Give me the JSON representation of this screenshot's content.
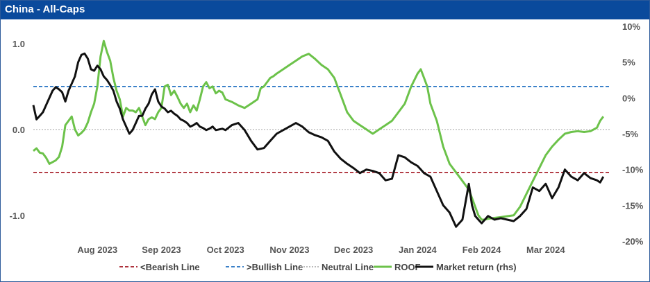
{
  "title": "China - All-Caps",
  "chart_data": {
    "type": "line",
    "left_axis": {
      "ticks": [
        1.0,
        0.0,
        -1.0
      ],
      "labels": [
        "1.0",
        "0.0",
        "-1.0"
      ],
      "range": [
        -1.3,
        1.2
      ]
    },
    "right_axis": {
      "ticks": [
        10,
        5,
        0,
        -5,
        -10,
        -15,
        -20
      ],
      "labels": [
        "10%",
        "5%",
        "0%",
        "-5%",
        "-10%",
        "-15%",
        "-20%"
      ],
      "range": [
        -20,
        10
      ]
    },
    "x_range": [
      0,
      9.0
    ],
    "x_ticks": [
      {
        "pos": 1.0,
        "label": "Aug 2023"
      },
      {
        "pos": 2.0,
        "label": "Sep 2023"
      },
      {
        "pos": 3.0,
        "label": "Oct 2023"
      },
      {
        "pos": 4.0,
        "label": "Nov 2023"
      },
      {
        "pos": 5.0,
        "label": "Dec 2023"
      },
      {
        "pos": 6.0,
        "label": "Jan 2024"
      },
      {
        "pos": 7.0,
        "label": "Feb 2024"
      },
      {
        "pos": 8.0,
        "label": "Mar 2024"
      }
    ],
    "reference_lines": [
      {
        "name": "<Bearish Line",
        "value": -0.5,
        "color": "#a31621",
        "style": "dashed"
      },
      {
        "name": ">Bullish Line",
        "value": 0.5,
        "color": "#1f6fc1",
        "style": "dashed"
      },
      {
        "name": "Neutral Line",
        "value": 0.0,
        "color": "#b0b0b0",
        "style": "dotted"
      }
    ],
    "series": [
      {
        "name": "ROOF",
        "axis": "left",
        "color": "#6cc24a",
        "x": [
          0.0,
          0.05,
          0.1,
          0.15,
          0.2,
          0.25,
          0.3,
          0.35,
          0.4,
          0.45,
          0.5,
          0.55,
          0.6,
          0.65,
          0.7,
          0.75,
          0.8,
          0.85,
          0.9,
          0.95,
          1.0,
          1.05,
          1.1,
          1.15,
          1.2,
          1.25,
          1.3,
          1.35,
          1.4,
          1.45,
          1.5,
          1.55,
          1.6,
          1.65,
          1.7,
          1.75,
          1.8,
          1.85,
          1.9,
          1.95,
          2.0,
          2.05,
          2.1,
          2.15,
          2.2,
          2.25,
          2.3,
          2.35,
          2.4,
          2.45,
          2.5,
          2.55,
          2.6,
          2.65,
          2.7,
          2.75,
          2.8,
          2.85,
          2.9,
          2.95,
          3.0,
          3.1,
          3.2,
          3.3,
          3.4,
          3.5,
          3.55,
          3.6,
          3.65,
          3.7,
          3.75,
          3.8,
          3.9,
          4.0,
          4.1,
          4.2,
          4.3,
          4.4,
          4.5,
          4.6,
          4.7,
          4.8,
          4.9,
          5.0,
          5.1,
          5.2,
          5.3,
          5.4,
          5.5,
          5.6,
          5.7,
          5.8,
          5.9,
          6.0,
          6.05,
          6.1,
          6.15,
          6.2,
          6.3,
          6.4,
          6.5,
          6.6,
          6.7,
          6.8,
          6.85,
          6.9,
          6.95,
          7.0,
          7.05,
          7.1,
          7.2,
          7.3,
          7.4,
          7.5,
          7.6,
          7.7,
          7.8,
          7.9,
          8.0,
          8.1,
          8.2,
          8.3,
          8.4,
          8.5,
          8.6,
          8.7,
          8.8,
          8.85,
          8.9
        ],
        "values": [
          -0.25,
          -0.22,
          -0.27,
          -0.28,
          -0.33,
          -0.4,
          -0.38,
          -0.36,
          -0.32,
          -0.2,
          0.05,
          0.1,
          0.15,
          0.0,
          -0.07,
          -0.04,
          0.0,
          0.08,
          0.2,
          0.3,
          0.5,
          0.85,
          1.03,
          0.9,
          0.8,
          0.6,
          0.45,
          0.35,
          0.15,
          0.25,
          0.22,
          0.22,
          0.2,
          0.25,
          0.15,
          0.05,
          0.12,
          0.14,
          0.12,
          0.2,
          0.25,
          0.5,
          0.52,
          0.4,
          0.45,
          0.38,
          0.3,
          0.25,
          0.3,
          0.2,
          0.28,
          0.22,
          0.35,
          0.5,
          0.55,
          0.48,
          0.5,
          0.42,
          0.45,
          0.43,
          0.35,
          0.32,
          0.28,
          0.25,
          0.3,
          0.35,
          0.48,
          0.5,
          0.55,
          0.6,
          0.62,
          0.65,
          0.7,
          0.75,
          0.8,
          0.85,
          0.88,
          0.82,
          0.75,
          0.7,
          0.6,
          0.4,
          0.2,
          0.1,
          0.05,
          0.0,
          -0.05,
          0.0,
          0.05,
          0.1,
          0.2,
          0.3,
          0.5,
          0.65,
          0.7,
          0.6,
          0.5,
          0.3,
          0.1,
          -0.2,
          -0.4,
          -0.5,
          -0.6,
          -0.7,
          -0.8,
          -0.9,
          -1.0,
          -1.05,
          -1.05,
          -1.04,
          -1.03,
          -1.02,
          -1.01,
          -1.0,
          -0.9,
          -0.75,
          -0.6,
          -0.45,
          -0.3,
          -0.2,
          -0.12,
          -0.05,
          -0.03,
          -0.02,
          -0.03,
          -0.02,
          0.02,
          0.1,
          0.15
        ]
      },
      {
        "name": "Market return (rhs)",
        "axis": "right",
        "color": "#111111",
        "x": [
          0.0,
          0.05,
          0.1,
          0.15,
          0.2,
          0.25,
          0.3,
          0.35,
          0.4,
          0.45,
          0.5,
          0.55,
          0.6,
          0.65,
          0.7,
          0.75,
          0.8,
          0.85,
          0.9,
          0.95,
          1.0,
          1.05,
          1.1,
          1.15,
          1.2,
          1.25,
          1.3,
          1.35,
          1.4,
          1.45,
          1.5,
          1.55,
          1.6,
          1.65,
          1.7,
          1.75,
          1.8,
          1.85,
          1.9,
          1.95,
          2.0,
          2.05,
          2.1,
          2.15,
          2.2,
          2.25,
          2.3,
          2.35,
          2.4,
          2.45,
          2.5,
          2.55,
          2.6,
          2.65,
          2.7,
          2.75,
          2.8,
          2.85,
          2.9,
          2.95,
          3.0,
          3.1,
          3.2,
          3.3,
          3.4,
          3.5,
          3.6,
          3.7,
          3.8,
          3.9,
          4.0,
          4.1,
          4.2,
          4.3,
          4.4,
          4.5,
          4.6,
          4.7,
          4.8,
          4.9,
          5.0,
          5.1,
          5.2,
          5.3,
          5.4,
          5.5,
          5.6,
          5.7,
          5.8,
          5.9,
          6.0,
          6.1,
          6.2,
          6.3,
          6.4,
          6.5,
          6.6,
          6.7,
          6.8,
          6.85,
          6.9,
          6.95,
          7.0,
          7.1,
          7.2,
          7.3,
          7.4,
          7.5,
          7.6,
          7.7,
          7.8,
          7.9,
          8.0,
          8.1,
          8.2,
          8.3,
          8.4,
          8.5,
          8.6,
          8.7,
          8.8,
          8.85,
          8.9
        ],
        "values": [
          -1,
          -3,
          -2.5,
          -2,
          -1,
          0,
          1,
          1.5,
          1.2,
          0.8,
          -0.5,
          1,
          2,
          3,
          5,
          6,
          6.2,
          5.5,
          4,
          3.8,
          4.5,
          4,
          3,
          2.5,
          1.8,
          1,
          -0.5,
          -1.5,
          -3,
          -4,
          -5,
          -4.5,
          -3.5,
          -2.5,
          -2.5,
          -1.5,
          -0.8,
          0.5,
          1.2,
          -0.5,
          -1.2,
          -1.5,
          -2,
          -1.8,
          -2.2,
          -2.5,
          -3,
          -3.2,
          -3.5,
          -4,
          -3.8,
          -3.5,
          -4,
          -4.2,
          -4.5,
          -4.3,
          -4,
          -4.5,
          -4.4,
          -4.3,
          -4.5,
          -3.8,
          -3.5,
          -4.5,
          -6,
          -7.2,
          -7,
          -6,
          -5,
          -4.5,
          -4,
          -3.5,
          -4,
          -4.8,
          -5.2,
          -5.5,
          -6,
          -7.5,
          -8.5,
          -9.2,
          -9.8,
          -10.5,
          -10,
          -10.2,
          -10.5,
          -11.5,
          -11.3,
          -8,
          -8.3,
          -9,
          -9.5,
          -10.5,
          -11,
          -13,
          -15,
          -16,
          -18,
          -17,
          -12,
          -15,
          -16.5,
          -17,
          -17.5,
          -16.5,
          -17,
          -16.8,
          -17,
          -17.2,
          -16.5,
          -15.5,
          -12.5,
          -13,
          -12,
          -14,
          -12.5,
          -10,
          -11,
          -11.5,
          -10.5,
          -11.2,
          -11.5,
          -11.8,
          -11
        ]
      }
    ],
    "legend": {
      "placement": "bottom",
      "entries": [
        "<Bearish Line",
        ">Bullish Line",
        "Neutral Line",
        "ROOF",
        "Market return (rhs)"
      ]
    }
  }
}
